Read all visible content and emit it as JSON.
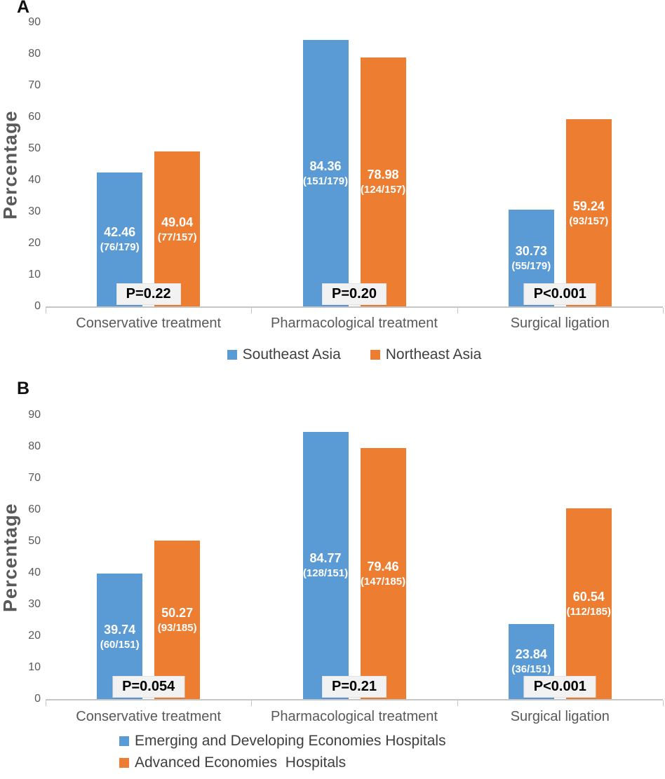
{
  "figure_title": "",
  "colors": {
    "series_blue": "#5B9BD5",
    "series_orange": "#ED7D31",
    "axis_line": "#C6C6C6",
    "tick_text": "#595959",
    "category_text": "#595959",
    "legend_text": "#3F3F3F",
    "pbox_background": "#F2F2F2",
    "pbox_text": "#000000",
    "bar_label_text": "#FFFFFF"
  },
  "chart_data": [
    {
      "type": "bar",
      "panel_label": "A",
      "title": "",
      "xlabel": "",
      "ylabel": "Percentage",
      "ylim": [
        0,
        90
      ],
      "yticks": [
        90,
        80,
        70,
        60,
        50,
        40,
        30,
        20,
        10,
        0
      ],
      "grid": false,
      "legend_position": "bottom-center",
      "categories": [
        "Conservative treatment",
        "Pharmacological treatment",
        "Surgical ligation"
      ],
      "series": [
        {
          "name": "Southeast Asia",
          "color": "#5B9BD5",
          "values": [
            42.46,
            84.36,
            30.73
          ],
          "value_labels": [
            "42.46",
            "84.36",
            "30.73"
          ],
          "fraction_labels": [
            "(76/179)",
            "(151/179)",
            "(55/179)"
          ]
        },
        {
          "name": "Northeast Asia",
          "color": "#ED7D31",
          "values": [
            49.04,
            78.98,
            59.24
          ],
          "value_labels": [
            "49.04",
            "78.98",
            "59.24"
          ],
          "fraction_labels": [
            "(77/157)",
            "(124/157)",
            "(93/157)"
          ]
        }
      ],
      "p_values": [
        "P=0.22",
        "P=0.20",
        "P<0.001"
      ],
      "legend": {
        "layout": "centered-row",
        "entries": [
          {
            "label": "Southeast Asia",
            "color": "#5B9BD5"
          },
          {
            "label": "Northeast Asia",
            "color": "#ED7D31"
          }
        ]
      }
    },
    {
      "type": "bar",
      "panel_label": "B",
      "title": "",
      "xlabel": "",
      "ylabel": "Percentage",
      "ylim": [
        0,
        90
      ],
      "yticks": [
        90,
        80,
        70,
        60,
        50,
        40,
        30,
        20,
        10,
        0
      ],
      "grid": false,
      "legend_position": "bottom-left",
      "categories": [
        "Conservative treatment",
        "Pharmacological treatment",
        "Surgical ligation"
      ],
      "series": [
        {
          "name": "Emerging and Developing Economies Hospitals",
          "color": "#5B9BD5",
          "values": [
            39.74,
            84.77,
            23.84
          ],
          "value_labels": [
            "39.74",
            "84.77",
            "23.84"
          ],
          "fraction_labels": [
            "(60/151)",
            "(128/151)",
            "(36/151)"
          ]
        },
        {
          "name": "Advanced Economies  Hospitals",
          "color": "#ED7D31",
          "values": [
            50.27,
            79.46,
            60.54
          ],
          "value_labels": [
            "50.27",
            "79.46",
            "60.54"
          ],
          "fraction_labels": [
            "(93/185)",
            "(147/185)",
            "(112/185)"
          ]
        }
      ],
      "p_values": [
        "P=0.054",
        "P=0.21",
        "P<0.001"
      ],
      "legend": {
        "layout": "left-column",
        "entries": [
          {
            "label": "Emerging and Developing Economies Hospitals",
            "color": "#5B9BD5"
          },
          {
            "label": "Advanced Economies  Hospitals",
            "color": "#ED7D31"
          }
        ]
      }
    }
  ]
}
